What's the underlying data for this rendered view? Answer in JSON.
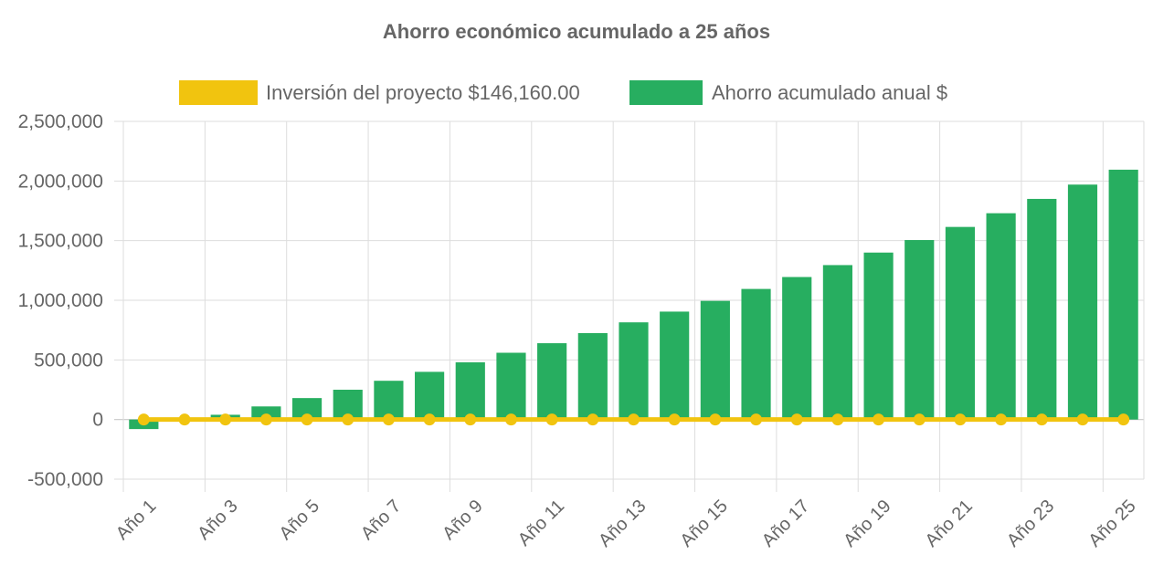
{
  "chart_data": {
    "type": "bar",
    "title": "Ahorro económico acumulado a 25 años",
    "categories": [
      "Año 1",
      "Año 2",
      "Año 3",
      "Año 4",
      "Año 5",
      "Año 6",
      "Año 7",
      "Año 8",
      "Año 9",
      "Año 10",
      "Año 11",
      "Año 12",
      "Año 13",
      "Año 14",
      "Año 15",
      "Año 16",
      "Año 17",
      "Año 18",
      "Año 19",
      "Año 20",
      "Año 21",
      "Año 22",
      "Año 23",
      "Año 24",
      "Año 25"
    ],
    "visible_tick_labels": [
      "Año 1",
      "Año 3",
      "Año 5",
      "Año 7",
      "Año 9",
      "Año 11",
      "Año 13",
      "Año 15",
      "Año 17",
      "Año 19",
      "Año 21",
      "Año 23",
      "Año 25"
    ],
    "y_ticks": [
      "2,500,000",
      "2,000,000",
      "1,500,000",
      "1,000,000",
      "500,000",
      "0",
      "-500,000"
    ],
    "y_tick_values": [
      2500000,
      2000000,
      1500000,
      1000000,
      500000,
      0,
      -500000
    ],
    "ylim": [
      -500000,
      2500000
    ],
    "grid": true,
    "legend_position": "top",
    "series": [
      {
        "name": "Inversión del proyecto $146,160.00",
        "kind": "line",
        "color": "#f1c40f",
        "values": [
          0,
          0,
          0,
          0,
          0,
          0,
          0,
          0,
          0,
          0,
          0,
          0,
          0,
          0,
          0,
          0,
          0,
          0,
          0,
          0,
          0,
          0,
          0,
          0,
          0
        ]
      },
      {
        "name": "Ahorro acumulado anual $",
        "kind": "bar",
        "color": "#27ae60",
        "values": [
          -80000,
          5000,
          40000,
          110000,
          180000,
          250000,
          325000,
          400000,
          480000,
          560000,
          640000,
          725000,
          815000,
          905000,
          995000,
          1095000,
          1195000,
          1295000,
          1400000,
          1505000,
          1615000,
          1730000,
          1850000,
          1970000,
          2095000
        ]
      }
    ]
  }
}
